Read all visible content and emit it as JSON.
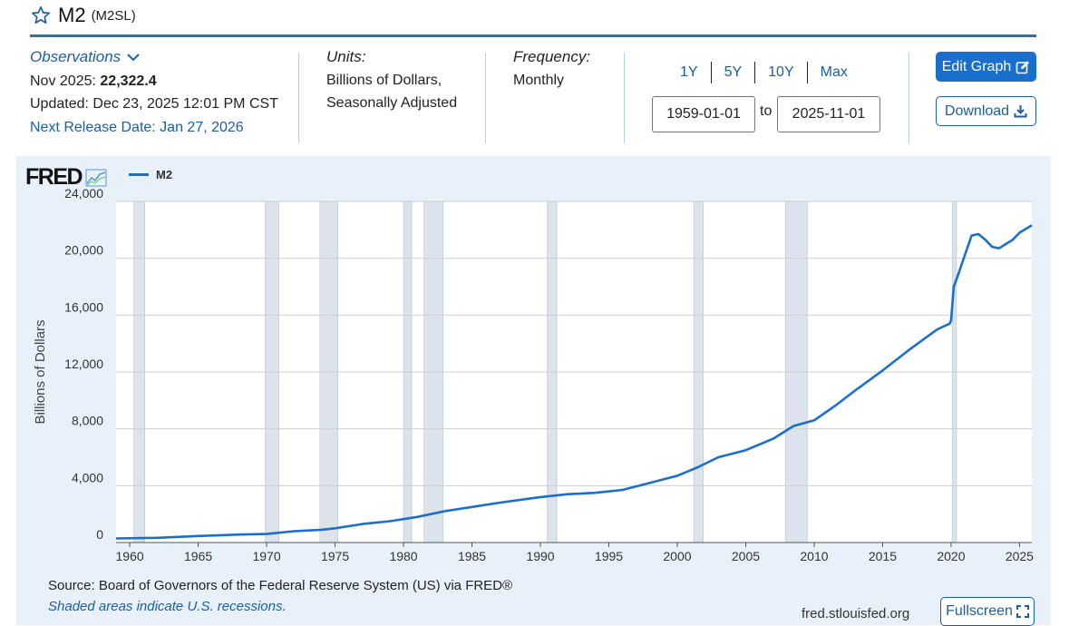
{
  "header": {
    "title": "M2",
    "series_id": "(M2SL)"
  },
  "observations": {
    "link_label": "Observations",
    "date_label": "Nov 2025:",
    "value": "22,322.4",
    "updated": "Updated: Dec 23, 2025 12:01 PM CST",
    "next_release": "Next Release Date: Jan 27, 2026"
  },
  "units": {
    "label": "Units:",
    "line1": "Billions of Dollars,",
    "line2": "Seasonally Adjusted"
  },
  "frequency": {
    "label": "Frequency:",
    "value": "Monthly"
  },
  "range": {
    "options": [
      "1Y",
      "5Y",
      "10Y",
      "Max"
    ],
    "start": "1959-01-01",
    "to_label": "to",
    "end": "2025-11-01"
  },
  "buttons": {
    "edit": "Edit Graph",
    "download": "Download",
    "fullscreen": "Fullscreen"
  },
  "footer": {
    "source": "Source: Board of Governors of the Federal Reserve System (US) via FRED®",
    "note": "Shaded areas indicate U.S. recessions.",
    "site": "fred.stlouisfed.org"
  },
  "logo_text": "FRED",
  "colors": {
    "line": "#1a6fcc",
    "recession": "#dde3ea",
    "panel": "#e8f1fa",
    "accent": "#1a5fa0"
  },
  "chart_data": {
    "type": "line",
    "title": "M2",
    "xlabel": "",
    "ylabel": "Billions of Dollars",
    "legend": [
      "M2"
    ],
    "xlim": [
      1959.0,
      2025.9
    ],
    "ylim": [
      0,
      24000
    ],
    "yticks": [
      0,
      4000,
      8000,
      12000,
      16000,
      20000,
      24000
    ],
    "ytick_labels": [
      "0",
      "4,000",
      "8,000",
      "12,000",
      "16,000",
      "20,000",
      "24,000"
    ],
    "xticks": [
      1960,
      1965,
      1970,
      1975,
      1980,
      1985,
      1990,
      1995,
      2000,
      2005,
      2010,
      2015,
      2020,
      2025
    ],
    "xtick_labels": [
      "1960",
      "1965",
      "1970",
      "1975",
      "1980",
      "1985",
      "1990",
      "1995",
      "2000",
      "2005",
      "2010",
      "2015",
      "2020",
      "2025"
    ],
    "recessions": [
      [
        1960.3,
        1961.1
      ],
      [
        1969.9,
        1970.9
      ],
      [
        1973.9,
        1975.2
      ],
      [
        1980.0,
        1980.6
      ],
      [
        1981.5,
        1982.9
      ],
      [
        1990.5,
        1991.2
      ],
      [
        2001.2,
        2001.9
      ],
      [
        2007.9,
        2009.5
      ],
      [
        2020.1,
        2020.4
      ]
    ],
    "series": [
      {
        "name": "M2",
        "x": [
          1959.0,
          1962,
          1965,
          1968,
          1970,
          1972,
          1974,
          1975,
          1977,
          1979,
          1981,
          1983,
          1985,
          1987,
          1990,
          1992,
          1994,
          1996,
          1998,
          2000,
          2001.5,
          2003,
          2005,
          2007,
          2008.5,
          2010,
          2011.5,
          2013,
          2015,
          2017,
          2019,
          2019.9,
          2020.0,
          2020.2,
          2020.5,
          2021,
          2021.5,
          2022,
          2022.5,
          2023,
          2023.5,
          2024,
          2024.5,
          2025,
          2025.9
        ],
        "values": [
          290,
          330,
          460,
          560,
          600,
          800,
          900,
          1000,
          1300,
          1500,
          1800,
          2200,
          2500,
          2800,
          3200,
          3400,
          3500,
          3700,
          4200,
          4700,
          5300,
          6000,
          6500,
          7300,
          8200,
          8600,
          9600,
          10700,
          12100,
          13600,
          15000,
          15400,
          15600,
          18000,
          18800,
          20200,
          21600,
          21700,
          21300,
          20800,
          20700,
          21000,
          21300,
          21800,
          22322
        ]
      }
    ]
  }
}
